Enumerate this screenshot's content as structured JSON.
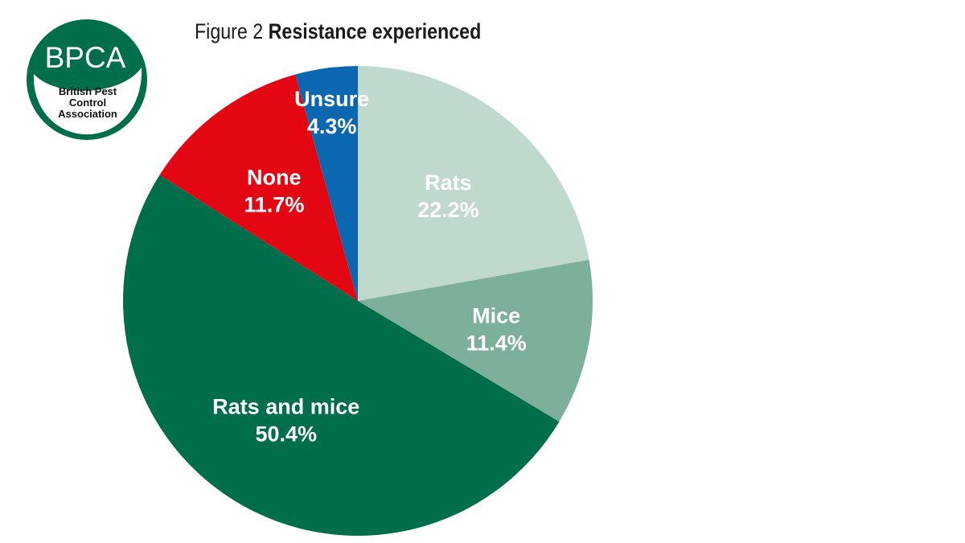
{
  "logo": {
    "acronym": "BPCA",
    "name_lines": [
      "British Pest",
      "Control",
      "Association"
    ],
    "color": "#006e4b"
  },
  "title": {
    "prefix": "Figure 2",
    "main": "Resistance experienced"
  },
  "chart_data": {
    "type": "pie",
    "title": "Resistance experienced",
    "start_angle_deg": 0,
    "direction": "clockwise",
    "slices": [
      {
        "label": "Rats",
        "value": 22.2,
        "value_label": "22.2%",
        "color": "#bfd9cd"
      },
      {
        "label": "Mice",
        "value": 11.4,
        "value_label": "11.4%",
        "color": "#7db09b"
      },
      {
        "label": "Rats and mice",
        "value": 50.4,
        "value_label": "50.4%",
        "color": "#006e4b"
      },
      {
        "label": "None",
        "value": 11.7,
        "value_label": "11.7%",
        "color": "#e30613"
      },
      {
        "label": "Unsure",
        "value": 4.3,
        "value_label": "4.3%",
        "color": "#0b68b0"
      }
    ]
  }
}
